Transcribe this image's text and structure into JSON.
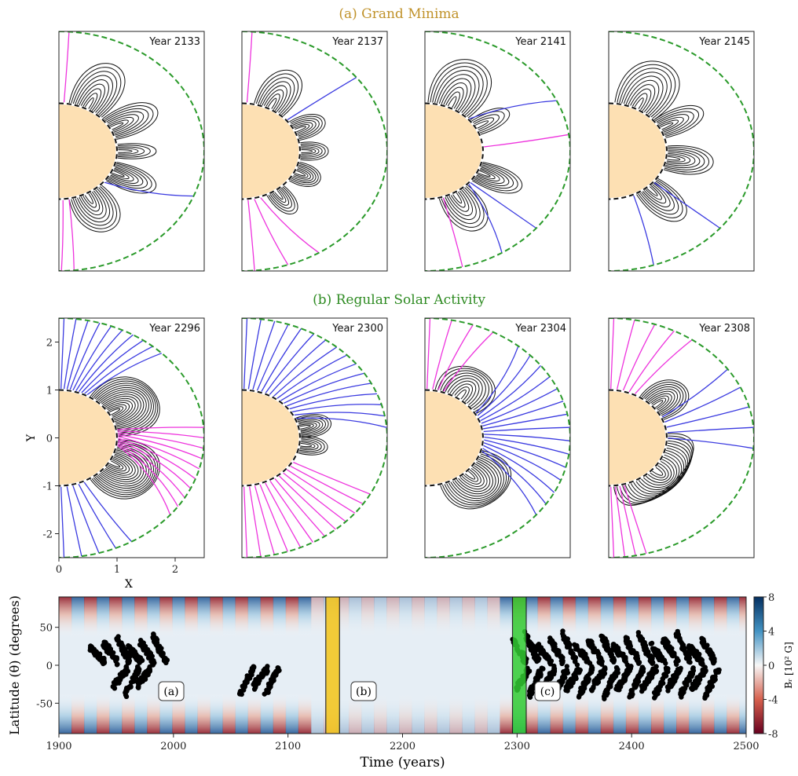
{
  "chart_data": [
    {
      "type": "field-lines",
      "title": "(a) Grand Minima",
      "title_color": "#c0922a",
      "panels": [
        "Year 2133",
        "Year 2137",
        "Year 2141",
        "Year 2145"
      ]
    },
    {
      "type": "field-lines",
      "title": "(b) Regular Solar Activity",
      "title_color": "#2e8b22",
      "panels": [
        "Year 2296",
        "Year 2300",
        "Year 2304",
        "Year 2308"
      ],
      "xlabel": "X",
      "ylabel": "Y",
      "xlim": [
        0,
        2.5
      ],
      "ylim": [
        -2.5,
        2.5
      ],
      "xticks": [
        0,
        1,
        2
      ],
      "yticks": [
        -2,
        -1,
        0,
        1,
        2
      ]
    },
    {
      "type": "butterfly",
      "xlabel": "Time (years)",
      "ylabel": "Latitude (θ) (degrees)",
      "xlim": [
        1900,
        2500
      ],
      "ylim": [
        -90,
        90
      ],
      "xticks": [
        1900,
        2000,
        2100,
        2200,
        2300,
        2400,
        2500
      ],
      "yticks": [
        -50,
        0,
        50
      ],
      "colorbar": {
        "label": "Bᵣ [10² G]",
        "lim": [
          -8,
          8
        ],
        "ticks": [
          -8,
          -4,
          0,
          4,
          8
        ]
      },
      "highlights": [
        {
          "range": [
            2133,
            2145
          ],
          "color": "#f5c518"
        },
        {
          "range": [
            2296,
            2308
          ],
          "color": "#33cc33"
        }
      ],
      "annotations": [
        "(a)",
        "(b)",
        "(c)"
      ]
    }
  ]
}
